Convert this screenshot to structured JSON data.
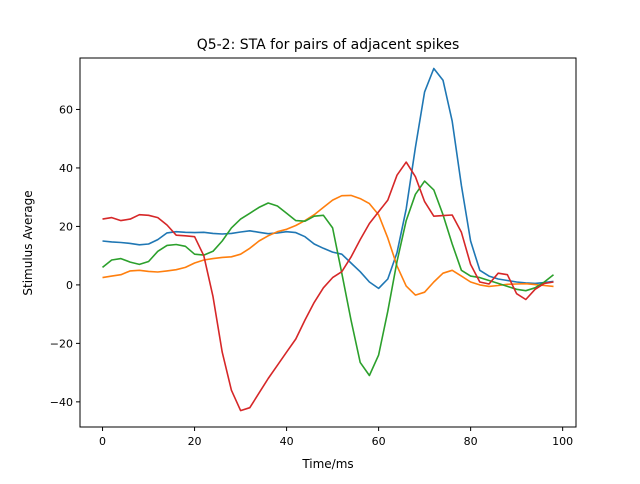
{
  "chart_data": {
    "type": "line",
    "title": "Q5-2: STA for pairs of adjacent spikes",
    "xlabel": "Time/ms",
    "ylabel": "Stimulus Average",
    "xlim": [
      -4.9,
      102.9
    ],
    "ylim": [
      -48.6,
      77.6
    ],
    "xticks": [
      0,
      20,
      40,
      60,
      80,
      100
    ],
    "yticks": [
      -40,
      -20,
      0,
      20,
      40,
      60
    ],
    "grid": false,
    "x": [
      0,
      2,
      4,
      6,
      8,
      10,
      12,
      14,
      16,
      18,
      20,
      22,
      24,
      26,
      28,
      30,
      32,
      34,
      36,
      38,
      40,
      42,
      44,
      46,
      48,
      50,
      52,
      54,
      56,
      58,
      60,
      62,
      64,
      66,
      68,
      70,
      72,
      74,
      76,
      78,
      80,
      82,
      84,
      86,
      88,
      90,
      92,
      94,
      96,
      98
    ],
    "series": [
      {
        "color": "#1f77b4",
        "values": [
          15,
          14.7,
          14.5,
          14.2,
          13.7,
          14,
          15.5,
          17.8,
          18.2,
          18,
          17.9,
          18,
          17.6,
          17.4,
          17.6,
          18.1,
          18.5,
          18,
          17.5,
          17.8,
          18.2,
          17.9,
          16.5,
          14,
          12.5,
          11.2,
          10.5,
          7.5,
          4.5,
          1,
          -1.2,
          2,
          11,
          26,
          47,
          66,
          74,
          70,
          56,
          34,
          15,
          5,
          3,
          2,
          1.5,
          1,
          0.7,
          0.5,
          0.8,
          1.2
        ]
      },
      {
        "color": "#ff7f0e",
        "values": [
          2.5,
          3,
          3.5,
          4.8,
          5,
          4.6,
          4.4,
          4.8,
          5.2,
          6,
          7.5,
          8.5,
          9,
          9.4,
          9.6,
          10.5,
          12.5,
          15,
          16.8,
          18.2,
          19,
          20.3,
          22,
          24,
          26.5,
          29,
          30.5,
          30.6,
          29.5,
          27.8,
          24,
          16,
          6.5,
          -0.4,
          -3.5,
          -2.5,
          1,
          4,
          5,
          3,
          1,
          0,
          -0.5,
          -0.2,
          0.2,
          0.3,
          0.4,
          0.1,
          -0.2,
          -0.5
        ]
      },
      {
        "color": "#2ca02c",
        "values": [
          6,
          8.5,
          9,
          7.8,
          7,
          8,
          11.5,
          13.5,
          13.8,
          13.2,
          10.5,
          10.2,
          11.5,
          15,
          19.5,
          22.5,
          24.5,
          26.5,
          28,
          27,
          24.5,
          22,
          21.8,
          23.5,
          23.8,
          19.5,
          4,
          -12,
          -26.5,
          -31,
          -24,
          -9,
          8,
          22,
          31,
          35.5,
          32.5,
          24,
          14,
          5,
          3,
          2.5,
          1.5,
          0.5,
          -0.5,
          -1.5,
          -2,
          -1,
          1,
          3.5
        ]
      },
      {
        "color": "#d62728",
        "values": [
          22.5,
          23,
          22,
          22.5,
          24,
          23.8,
          23,
          20.5,
          17,
          16.8,
          16.5,
          10,
          -4,
          -23,
          -36,
          -43,
          -42,
          -37,
          -32,
          -27.5,
          -23,
          -18.5,
          -12,
          -6,
          -1,
          2.5,
          4.5,
          9.5,
          15.5,
          21,
          25,
          29,
          37.5,
          42,
          37,
          28.5,
          23.5,
          23.7,
          23.9,
          18,
          7,
          1,
          0.3,
          4,
          3.5,
          -3,
          -5,
          -1.5,
          0.5,
          1
        ]
      }
    ]
  }
}
